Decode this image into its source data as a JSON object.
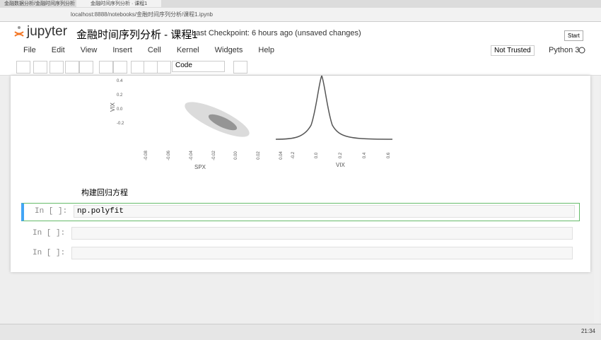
{
  "browser": {
    "tabs": [
      "金融数据分析/金融时间序列分析",
      "金融时间序列分析 · 课程1"
    ],
    "address": "localhost:8888/notebooks/金融时间序列分析/课程1.ipynb"
  },
  "header": {
    "logo": "jupyter",
    "title": "金融时间序列分析 - 课程1",
    "checkpoint": "Last Checkpoint: 6 hours ago (unsaved changes)",
    "logout": "Start"
  },
  "menu": [
    "File",
    "Edit",
    "View",
    "Insert",
    "Cell",
    "Kernel",
    "Widgets",
    "Help"
  ],
  "status": {
    "trust": "Not Trusted",
    "kernel": "Python 3"
  },
  "toolbar": {
    "cell_type": "Code"
  },
  "plot": {
    "left": {
      "ylabel": "VIX",
      "xlabel": "SPX",
      "yticks": [
        "0.4",
        "0.2",
        "0.0",
        "-0.2"
      ],
      "xticks": [
        "-0.08",
        "-0.06",
        "-0.04",
        "-0.02",
        "0.00",
        "0.02",
        "0.04"
      ]
    },
    "right": {
      "xlabel": "VIX",
      "xticks": [
        "-0.2",
        "0.0",
        "0.2",
        "0.4",
        "0.6"
      ]
    }
  },
  "markdown": "构建回归方程",
  "cells": [
    {
      "prompt": "In [ ]:",
      "code": "np.polyfit"
    },
    {
      "prompt": "In [ ]:",
      "code": ""
    },
    {
      "prompt": "In [ ]:",
      "code": ""
    }
  ],
  "taskbar": {
    "clock": "21:34"
  }
}
